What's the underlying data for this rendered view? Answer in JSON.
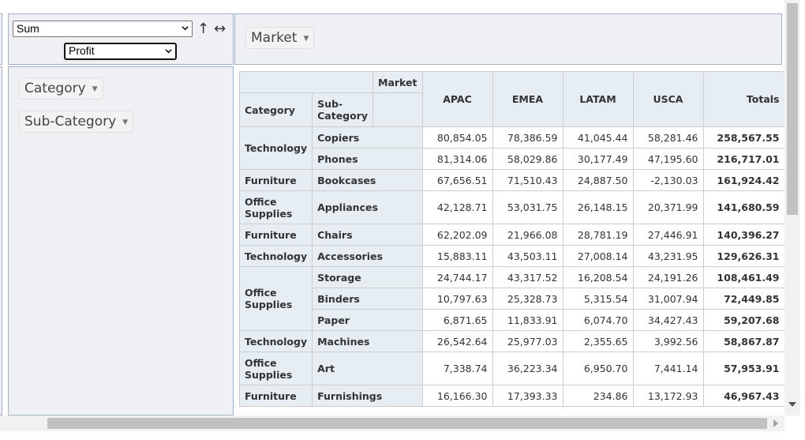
{
  "aggregator": {
    "selected": "Sum",
    "sort_icon": "↑",
    "swap_icon": "↔"
  },
  "value_field": {
    "selected": "Profit"
  },
  "col_fields": [
    {
      "label": "Market"
    }
  ],
  "row_fields": [
    {
      "label": "Category"
    },
    {
      "label": "Sub-Category"
    }
  ],
  "table": {
    "col_attr": "Market",
    "row_attr_1": "Category",
    "row_attr_2": "Sub-Category",
    "columns": [
      "APAC",
      "EMEA",
      "LATAM",
      "USCA"
    ],
    "totals_label": "Totals",
    "groups": [
      {
        "category": "Technology",
        "rows": [
          {
            "sub": "Copiers",
            "values": [
              "80,854.05",
              "78,386.59",
              "41,045.44",
              "58,281.46"
            ],
            "total": "258,567.55"
          },
          {
            "sub": "Phones",
            "values": [
              "81,314.06",
              "58,029.86",
              "30,177.49",
              "47,195.60"
            ],
            "total": "216,717.01"
          }
        ]
      },
      {
        "category": "Furniture",
        "rows": [
          {
            "sub": "Bookcases",
            "values": [
              "67,656.51",
              "71,510.43",
              "24,887.50",
              "-2,130.03"
            ],
            "total": "161,924.42"
          }
        ]
      },
      {
        "category": "Office Supplies",
        "rows": [
          {
            "sub": "Appliances",
            "values": [
              "42,128.71",
              "53,031.75",
              "26,148.15",
              "20,371.99"
            ],
            "total": "141,680.59"
          }
        ]
      },
      {
        "category": "Furniture",
        "rows": [
          {
            "sub": "Chairs",
            "values": [
              "62,202.09",
              "21,966.08",
              "28,781.19",
              "27,446.91"
            ],
            "total": "140,396.27"
          }
        ]
      },
      {
        "category": "Technology",
        "rows": [
          {
            "sub": "Accessories",
            "values": [
              "15,883.11",
              "43,503.11",
              "27,008.14",
              "43,231.95"
            ],
            "total": "129,626.31"
          }
        ]
      },
      {
        "category": "Office Supplies",
        "rows": [
          {
            "sub": "Storage",
            "values": [
              "24,744.17",
              "43,317.52",
              "16,208.54",
              "24,191.26"
            ],
            "total": "108,461.49"
          },
          {
            "sub": "Binders",
            "values": [
              "10,797.63",
              "25,328.73",
              "5,315.54",
              "31,007.94"
            ],
            "total": "72,449.85"
          },
          {
            "sub": "Paper",
            "values": [
              "6,871.65",
              "11,833.91",
              "6,074.70",
              "34,427.43"
            ],
            "total": "59,207.68"
          }
        ]
      },
      {
        "category": "Technology",
        "rows": [
          {
            "sub": "Machines",
            "values": [
              "26,542.64",
              "25,977.03",
              "2,355.65",
              "3,992.56"
            ],
            "total": "58,867.87"
          }
        ]
      },
      {
        "category": "Office Supplies",
        "rows": [
          {
            "sub": "Art",
            "values": [
              "7,338.74",
              "36,223.34",
              "6,950.70",
              "7,441.14"
            ],
            "total": "57,953.91"
          }
        ]
      },
      {
        "category": "Furniture",
        "rows": [
          {
            "sub": "Furnishings",
            "values": [
              "16,166.30",
              "17,393.33",
              "234.86",
              "13,172.93"
            ],
            "total": "46,967.43"
          }
        ]
      }
    ]
  }
}
